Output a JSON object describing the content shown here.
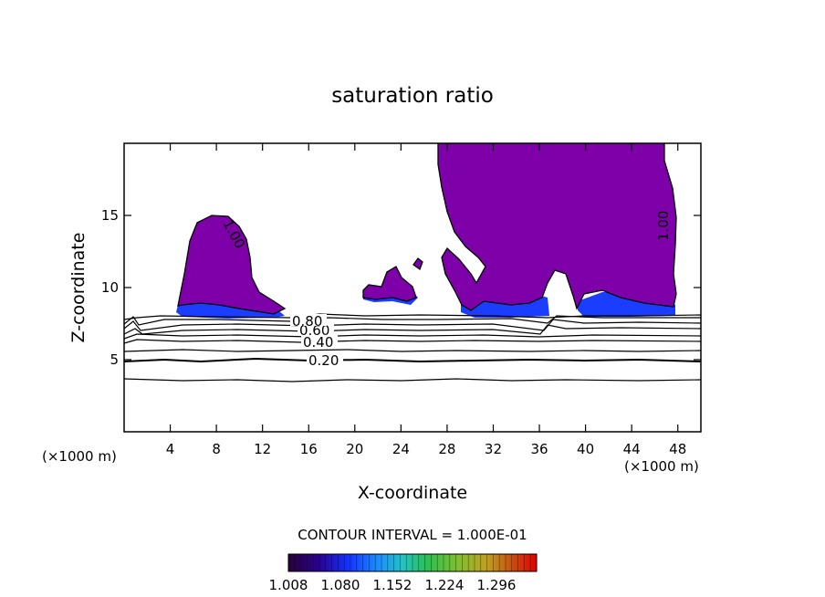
{
  "chart_data": {
    "type": "contour",
    "title": "saturation ratio",
    "xlabel": "X-coordinate",
    "ylabel": "Z-coordinate",
    "x_unit_left": "(×1000 m)",
    "x_unit_right": "(×1000 m)",
    "xlim": [
      0,
      50
    ],
    "ylim": [
      0,
      20
    ],
    "xticks": [
      4,
      8,
      12,
      16,
      20,
      24,
      28,
      32,
      36,
      40,
      44,
      48
    ],
    "yticks": [
      5,
      10,
      15
    ],
    "grid": false,
    "contour_interval_text": "CONTOUR INTERVAL = 1.000E-01",
    "contour_levels": [
      0.1,
      0.2,
      0.3,
      0.4,
      0.5,
      0.6,
      0.7,
      0.8,
      0.9,
      1.0
    ],
    "contour_line_labels": [
      {
        "text": "0.20",
        "x": 17.7,
        "z": 5.0
      },
      {
        "text": "0.40",
        "x": 17.2,
        "z": 6.3
      },
      {
        "text": "0.60",
        "x": 16.7,
        "z": 7.4
      },
      {
        "text": "0.80",
        "x": 16.3,
        "z": 7.6
      },
      {
        "text": "1.00",
        "x": 7.9,
        "z": 13.8
      },
      {
        "text": "1.00",
        "x": 47.2,
        "z": 14.3
      }
    ],
    "shaded_region_color": "#7e00a8",
    "shaded_base_color": "#1a3dff",
    "colorbar": {
      "min": 1.008,
      "max": 1.296,
      "tick_labels": [
        "1.008",
        "1.080",
        "1.152",
        "1.224",
        "1.296"
      ],
      "colors": [
        "#2a0038",
        "#2a0090",
        "#1432ff",
        "#1c8cff",
        "#22c4c4",
        "#2bbf50",
        "#7fbf30",
        "#c0a020",
        "#c85010",
        "#e00000"
      ]
    }
  }
}
